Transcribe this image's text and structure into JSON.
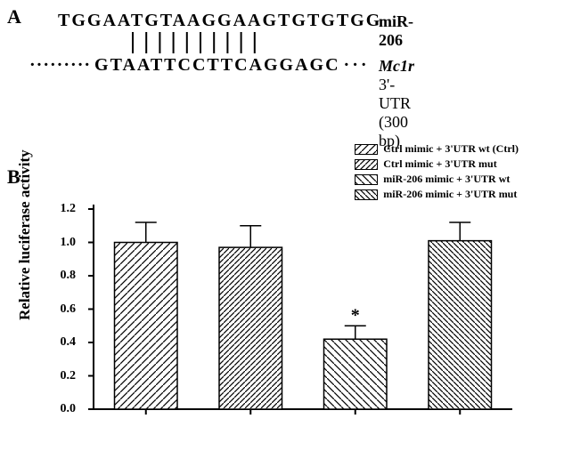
{
  "panelA": {
    "label": "A",
    "mir_seq": "TGGAATGTAAGGAAGTGTGTGG",
    "mir_label": "miR-206",
    "utr_seq": "GTAATTCCTTCAGGAGC",
    "utr_label_italic": "Mc1r",
    "utr_label_rest": " 3'-UTR (300 bp)",
    "match_start": 5,
    "match_end": 14
  },
  "panelB": {
    "label": "B",
    "legend": [
      "Ctrl mimic + 3'UTR wt (Ctrl)",
      "Ctrl mimic + 3'UTR mut",
      "miR-206 mimic + 3'UTR wt",
      "miR-206 mimic + 3'UTR mut"
    ],
    "y_label": "Relative luciferase activity",
    "ylim": [
      0,
      1.2
    ],
    "yticks": [
      0,
      0.2,
      0.4,
      0.6,
      0.8,
      1.0,
      1.2
    ],
    "bars": [
      {
        "value": 1.0,
        "error": 0.12,
        "sig": ""
      },
      {
        "value": 0.97,
        "error": 0.13,
        "sig": ""
      },
      {
        "value": 0.42,
        "error": 0.08,
        "sig": "*"
      },
      {
        "value": 1.01,
        "error": 0.11,
        "sig": ""
      }
    ],
    "bar_width": 0.6,
    "hatches": [
      "diag1",
      "diag2",
      "diag3",
      "diag4"
    ],
    "colors": {
      "bar_stroke": "#000000",
      "bar_fill": "#ffffff",
      "axis": "#000000",
      "background": "#ffffff"
    },
    "fontsize": {
      "axis_label": 17,
      "tick": 14,
      "legend": 12,
      "sig": 20
    }
  }
}
